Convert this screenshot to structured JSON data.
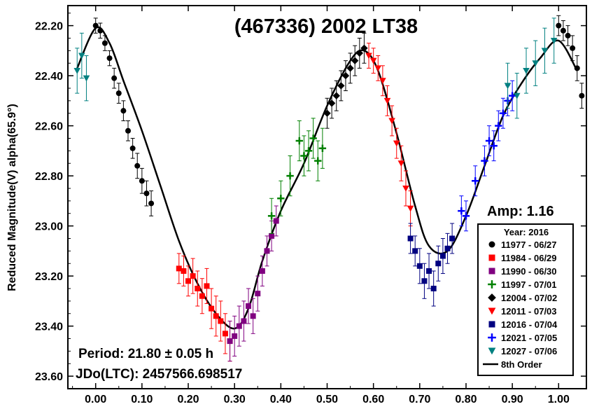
{
  "chart_data": {
    "type": "scatter",
    "title": "(467336) 2002 LT38",
    "ylabel": "Reduced Magnitude(V) alpha(65.9°)",
    "xlabel": "",
    "xlim": [
      -0.06,
      1.06
    ],
    "ylim": [
      23.65,
      22.12
    ],
    "y_inverted": true,
    "grid": false,
    "x_ticks": [
      "0.00",
      "0.10",
      "0.20",
      "0.30",
      "0.40",
      "0.50",
      "0.60",
      "0.70",
      "0.80",
      "0.90",
      "1.00"
    ],
    "x_tick_values": [
      0,
      0.1,
      0.2,
      0.3,
      0.4,
      0.5,
      0.6,
      0.7,
      0.8,
      0.9,
      1.0
    ],
    "y_ticks": [
      "22.20",
      "22.40",
      "22.60",
      "22.80",
      "23.00",
      "23.20",
      "23.40",
      "23.60"
    ],
    "y_tick_values": [
      22.2,
      22.4,
      22.6,
      22.8,
      23.0,
      23.2,
      23.4,
      23.6
    ],
    "amplitude_label": "Amp: 1.16",
    "period_label": "Period: 21.80 ± 0.05 h",
    "epoch_label": "JDo(LTC): 2457566.698517",
    "legend": {
      "title": "Year: 2016",
      "position": "bottom-right",
      "fit_label": "8th Order"
    },
    "fit_curve": {
      "name": "8th Order",
      "color": "#000000",
      "x": [
        -0.04,
        0.0,
        0.03,
        0.06,
        0.1,
        0.14,
        0.18,
        0.22,
        0.26,
        0.3,
        0.33,
        0.36,
        0.4,
        0.45,
        0.5,
        0.55,
        0.58,
        0.61,
        0.65,
        0.69,
        0.72,
        0.76,
        0.8,
        0.84,
        0.88,
        0.92,
        0.96,
        1.0,
        1.04
      ],
      "y": [
        22.37,
        22.21,
        22.27,
        22.42,
        22.62,
        22.84,
        23.06,
        23.23,
        23.35,
        23.41,
        23.33,
        23.14,
        22.94,
        22.75,
        22.52,
        22.34,
        22.3,
        22.38,
        22.63,
        22.92,
        23.08,
        23.1,
        22.96,
        22.76,
        22.56,
        22.43,
        22.33,
        22.26,
        22.38
      ]
    },
    "series": [
      {
        "name": "11977 - 06/27",
        "marker": "circle",
        "color": "#000000",
        "x": [
          0.0,
          0.01,
          0.02,
          0.03,
          0.04,
          0.05,
          0.06,
          0.07,
          0.08,
          0.09,
          0.1,
          0.11,
          0.12
        ],
        "y": [
          22.2,
          22.22,
          22.27,
          22.33,
          22.41,
          22.47,
          22.54,
          22.62,
          22.69,
          22.76,
          22.82,
          22.87,
          22.91
        ],
        "err": [
          0.03,
          0.03,
          0.03,
          0.03,
          0.04,
          0.04,
          0.04,
          0.04,
          0.04,
          0.05,
          0.05,
          0.05,
          0.05
        ]
      },
      {
        "name": "11984 - 06/29",
        "marker": "square",
        "color": "#ff0000",
        "x": [
          0.18,
          0.19,
          0.2,
          0.21,
          0.22,
          0.23,
          0.24,
          0.25,
          0.26,
          0.27,
          0.28,
          0.29
        ],
        "y": [
          23.17,
          23.18,
          23.22,
          23.2,
          23.25,
          23.28,
          23.24,
          23.33,
          23.36,
          23.38,
          23.43,
          23.46
        ],
        "err": [
          0.06,
          0.06,
          0.06,
          0.07,
          0.07,
          0.07,
          0.07,
          0.08,
          0.08,
          0.08,
          0.08,
          0.08
        ]
      },
      {
        "name": "11990 - 06/30",
        "marker": "square",
        "color": "#800080",
        "x": [
          0.29,
          0.3,
          0.31,
          0.32,
          0.33,
          0.34,
          0.35,
          0.36,
          0.37,
          0.38,
          0.39
        ],
        "y": [
          23.46,
          23.44,
          23.4,
          23.38,
          23.32,
          23.36,
          23.27,
          23.18,
          23.1,
          23.04,
          22.98
        ],
        "err": [
          0.08,
          0.08,
          0.08,
          0.08,
          0.07,
          0.07,
          0.07,
          0.06,
          0.06,
          0.06,
          0.06
        ]
      },
      {
        "name": "11997 - 07/01",
        "marker": "plus",
        "color": "#008000",
        "x": [
          0.38,
          0.4,
          0.42,
          0.44,
          0.45,
          0.46,
          0.47,
          0.48,
          0.49
        ],
        "y": [
          22.96,
          22.89,
          22.8,
          22.66,
          22.72,
          22.7,
          22.65,
          22.74,
          22.69
        ],
        "err": [
          0.07,
          0.07,
          0.08,
          0.08,
          0.08,
          0.08,
          0.08,
          0.08,
          0.08
        ]
      },
      {
        "name": "12004 - 07/02",
        "marker": "diamond",
        "color": "#000000",
        "x": [
          0.5,
          0.51,
          0.52,
          0.53,
          0.54,
          0.55,
          0.56,
          0.57,
          0.58
        ],
        "y": [
          22.55,
          22.51,
          22.48,
          22.44,
          22.4,
          22.37,
          22.34,
          22.31,
          22.29
        ],
        "err": [
          0.06,
          0.06,
          0.06,
          0.06,
          0.06,
          0.06,
          0.06,
          0.06,
          0.06
        ]
      },
      {
        "name": "12011 - 07/03",
        "marker": "triangle-down",
        "color": "#ff0000",
        "x": [
          0.59,
          0.6,
          0.61,
          0.62,
          0.63,
          0.64,
          0.65,
          0.66,
          0.67,
          0.68
        ],
        "y": [
          22.32,
          22.34,
          22.37,
          22.42,
          22.5,
          22.58,
          22.67,
          22.75,
          22.85,
          22.93
        ],
        "err": [
          0.05,
          0.05,
          0.05,
          0.06,
          0.06,
          0.06,
          0.06,
          0.07,
          0.07,
          0.07
        ]
      },
      {
        "name": "12016 - 07/04",
        "marker": "square",
        "color": "#000080",
        "x": [
          0.68,
          0.69,
          0.7,
          0.71,
          0.72,
          0.73,
          0.74,
          0.75,
          0.76,
          0.77
        ],
        "y": [
          23.05,
          23.1,
          23.16,
          23.22,
          23.18,
          23.25,
          23.15,
          23.12,
          23.09,
          23.05
        ],
        "err": [
          0.06,
          0.06,
          0.07,
          0.07,
          0.07,
          0.07,
          0.07,
          0.07,
          0.06,
          0.06
        ]
      },
      {
        "name": "12021 - 07/05",
        "marker": "plus",
        "color": "#0000ff",
        "x": [
          0.79,
          0.8,
          0.82,
          0.84,
          0.85,
          0.86,
          0.87,
          0.88,
          0.89,
          0.9
        ],
        "y": [
          22.94,
          22.96,
          22.82,
          22.74,
          22.66,
          22.68,
          22.6,
          22.55,
          22.5,
          22.48
        ],
        "err": [
          0.06,
          0.06,
          0.06,
          0.06,
          0.06,
          0.06,
          0.06,
          0.06,
          0.06,
          0.06
        ]
      },
      {
        "name": "12027 - 07/06",
        "marker": "triangle-down",
        "color": "#008080",
        "x": [
          -0.04,
          -0.03,
          -0.02,
          0.89,
          0.91,
          0.93,
          0.95,
          0.97,
          0.99
        ],
        "y": [
          22.38,
          22.32,
          22.41,
          22.44,
          22.48,
          22.38,
          22.35,
          22.3,
          22.26
        ],
        "err": [
          0.09,
          0.09,
          0.09,
          0.09,
          0.09,
          0.09,
          0.09,
          0.09,
          0.09
        ]
      }
    ],
    "late_black_points": {
      "name": "11977 - 06/27",
      "x": [
        1.0,
        1.01,
        1.02,
        1.03,
        1.04,
        1.05
      ],
      "y": [
        22.2,
        22.22,
        22.24,
        22.29,
        22.37,
        22.48
      ],
      "err": [
        0.04,
        0.04,
        0.04,
        0.05,
        0.05,
        0.05
      ]
    }
  }
}
